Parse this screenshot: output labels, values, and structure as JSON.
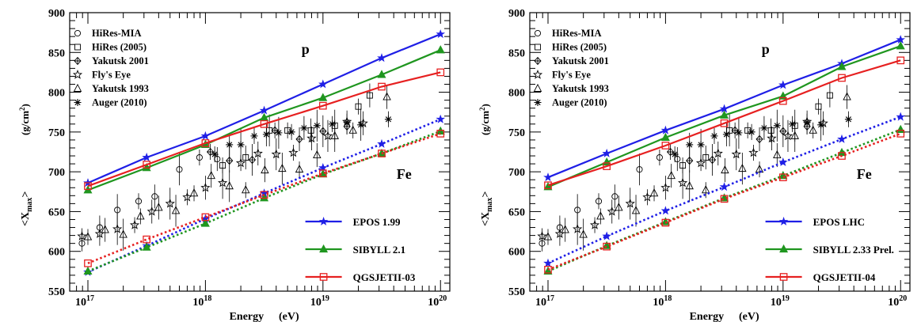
{
  "chart_data": [
    {
      "type": "line",
      "x_scale": "log",
      "xlim": [
        7e+16,
        1.2e+20
      ],
      "ylim": [
        550,
        900
      ],
      "x_tick_labels": [
        {
          "value": 1e+17,
          "base": "10",
          "exp": "17"
        },
        {
          "value": 1e+18,
          "base": "10",
          "exp": "18"
        },
        {
          "value": 1e+19,
          "base": "10",
          "exp": "19"
        },
        {
          "value": 1e+20,
          "base": "10",
          "exp": "20"
        }
      ],
      "y_ticks": [
        550,
        600,
        650,
        700,
        750,
        800,
        850,
        900
      ],
      "xlabel": "Energy",
      "xlabel_unit": "(eV)",
      "ylabel_main": "<X",
      "ylabel_sub": "max",
      "ylabel_close": ">",
      "ylabel_unit": "(g/cm",
      "ylabel_unit_sup": "2",
      "ylabel_unit_close": ")",
      "annotations": [
        {
          "text": "p",
          "x": 2.5e+19,
          "y": 855
        },
        {
          "text": "Fe",
          "x": 5e+19,
          "y": 690
        }
      ],
      "data_legend": [
        "HiRes-MIA",
        "HiRes (2005)",
        "Yakutsk 2001",
        "Fly's Eye",
        "Yakutsk 1993",
        "Auger (2010)"
      ],
      "data_legend_position": "top-left",
      "model_legend_position": "bottom-right",
      "series": [
        {
          "name": "EPOS 1.99",
          "component": "p",
          "style": "solid",
          "color": "#1f1fe6",
          "marker": "star",
          "x": [
            1e+17,
            3.16e+17,
            1e+18,
            3.16e+18,
            1e+19,
            3.16e+19,
            1e+20
          ],
          "y": [
            686,
            718,
            745,
            777,
            810,
            843,
            873
          ]
        },
        {
          "name": "SIBYLL 2.1",
          "component": "p",
          "style": "solid",
          "color": "#1f961f",
          "marker": "triangle",
          "x": [
            1e+17,
            3.16e+17,
            1e+18,
            3.16e+18,
            1e+19,
            3.16e+19,
            1e+20
          ],
          "y": [
            677,
            705,
            734,
            768,
            793,
            822,
            853
          ]
        },
        {
          "name": "QGSJETII-03",
          "component": "p",
          "style": "solid",
          "color": "#e62020",
          "marker": "open-square",
          "x": [
            1e+17,
            3.16e+17,
            1e+18,
            3.16e+18,
            1e+19,
            3.16e+19,
            1e+20
          ],
          "y": [
            682,
            709,
            736,
            760,
            783,
            807,
            825
          ]
        },
        {
          "name": "EPOS 1.99",
          "component": "Fe",
          "style": "dotted",
          "color": "#1f1fe6",
          "marker": "star",
          "x": [
            1e+17,
            3.16e+17,
            1e+18,
            3.16e+18,
            1e+19,
            3.16e+19,
            1e+20
          ],
          "y": [
            574,
            607,
            641,
            673,
            705,
            735,
            766
          ]
        },
        {
          "name": "SIBYLL 2.1",
          "component": "Fe",
          "style": "dotted",
          "color": "#1f961f",
          "marker": "triangle",
          "x": [
            1e+17,
            3.16e+17,
            1e+18,
            3.16e+18,
            1e+19,
            3.16e+19,
            1e+20
          ],
          "y": [
            575,
            605,
            635,
            667,
            697,
            723,
            751
          ]
        },
        {
          "name": "QGSJETII-03",
          "component": "Fe",
          "style": "dotted",
          "color": "#e62020",
          "marker": "open-square",
          "x": [
            1e+17,
            3.16e+17,
            1e+18,
            3.16e+18,
            1e+19,
            3.16e+19,
            1e+20
          ],
          "y": [
            585,
            615,
            643,
            671,
            698,
            723,
            748
          ]
        }
      ],
      "measurements": [
        {
          "name": "HiRes-MIA",
          "marker": "circle",
          "x": [
            8.9e+16,
            1.26e+17,
            1.78e+17,
            2.7e+17,
            3.7e+17,
            6e+17,
            8.9e+17,
            1.26e+18
          ],
          "y": [
            610,
            630,
            652,
            663,
            669,
            703,
            718,
            716
          ]
        },
        {
          "name": "HiRes (2005)",
          "marker": "square",
          "x": [
            1.4e+18,
            2.2e+18,
            3.5e+18,
            5e+18,
            7.9e+18,
            1.26e+19,
            2e+19,
            2.5e+19
          ],
          "y": [
            708,
            718,
            752,
            752,
            752,
            758,
            782,
            796
          ]
        },
        {
          "name": "Yakutsk 2001",
          "marker": "diamond-cross",
          "x": [
            1.1e+18,
            1.6e+18,
            2.5e+18,
            3.9e+18,
            6.3e+18,
            1e+19,
            1.6e+19
          ],
          "y": [
            725,
            714,
            715,
            752,
            741,
            751,
            757
          ]
        },
        {
          "name": "Fly's Eye",
          "marker": "open-star",
          "x": [
            8.9e+16,
            1.26e+17,
            1.78e+17,
            2.5e+17,
            3.5e+17,
            5e+17,
            7e+17,
            1e+18,
            1.4e+18,
            2e+18,
            2.8e+18,
            4e+18,
            5.6e+18,
            8e+18,
            1.1e+19,
            1.6e+19,
            2.2e+19
          ],
          "y": [
            619,
            622,
            628,
            633,
            650,
            660,
            668,
            680,
            686,
            711,
            723,
            722,
            724,
            742,
            745,
            763,
            761
          ]
        },
        {
          "name": "Yakutsk 1993",
          "marker": "open-triangle",
          "x": [
            1e+17,
            1.4e+17,
            2e+17,
            2.8e+17,
            4e+17,
            5.6e+17,
            8e+17,
            1.12e+18,
            1.6e+18,
            2.2e+18,
            3.2e+18,
            4.5e+18,
            6.3e+18,
            8.9e+18,
            1.26e+19,
            1.8e+19,
            3.5e+19
          ],
          "y": [
            618,
            627,
            621,
            644,
            655,
            651,
            673,
            695,
            682,
            677,
            702,
            704,
            703,
            721,
            745,
            752,
            794
          ]
        },
        {
          "name": "Auger (2010)",
          "marker": "asterisk",
          "x": [
            1.2e+18,
            1.6e+18,
            2e+18,
            2.6e+18,
            3.3e+18,
            4.2e+18,
            5.4e+18,
            6.9e+18,
            8.9e+18,
            1.2e+19,
            1.6e+19,
            2.1e+19,
            3.6e+19
          ],
          "y": [
            722,
            734,
            734,
            745,
            747,
            749,
            750,
            755,
            758,
            760,
            762,
            759,
            766
          ]
        }
      ]
    },
    {
      "type": "line",
      "x_scale": "log",
      "xlim": [
        7e+16,
        1.2e+20
      ],
      "ylim": [
        550,
        900
      ],
      "x_tick_labels": [
        {
          "value": 1e+17,
          "base": "10",
          "exp": "17"
        },
        {
          "value": 1e+18,
          "base": "10",
          "exp": "18"
        },
        {
          "value": 1e+19,
          "base": "10",
          "exp": "19"
        },
        {
          "value": 1e+20,
          "base": "10",
          "exp": "20"
        }
      ],
      "y_ticks": [
        550,
        600,
        650,
        700,
        750,
        800,
        850,
        900
      ],
      "xlabel": "Energy",
      "xlabel_unit": "(eV)",
      "ylabel_main": "<X",
      "ylabel_sub": "max",
      "ylabel_close": ">",
      "ylabel_unit": "(g/cm",
      "ylabel_unit_sup": "2",
      "ylabel_unit_close": ")",
      "annotations": [
        {
          "text": "p",
          "x": 2.5e+19,
          "y": 855
        },
        {
          "text": "Fe",
          "x": 5e+19,
          "y": 690
        }
      ],
      "data_legend": [
        "HiRes-MIA",
        "HiRes (2005)",
        "Yakutsk 2001",
        "Fly's Eye",
        "Yakutsk 1993",
        "Auger (2010)"
      ],
      "data_legend_position": "top-left",
      "model_legend_position": "bottom-right",
      "series": [
        {
          "name": "EPOS LHC",
          "component": "p",
          "style": "solid",
          "color": "#1f1fe6",
          "marker": "star",
          "x": [
            1e+17,
            3.16e+17,
            1e+18,
            3.16e+18,
            1e+19,
            3.16e+19,
            1e+20
          ],
          "y": [
            693,
            723,
            752,
            779,
            809,
            836,
            866
          ]
        },
        {
          "name": "SIBYLL 2.33 Prel.",
          "component": "p",
          "style": "solid",
          "color": "#1f961f",
          "marker": "triangle",
          "x": [
            1e+17,
            3.16e+17,
            1e+18,
            3.16e+18,
            1e+19,
            3.16e+19,
            1e+20
          ],
          "y": [
            681,
            712,
            743,
            771,
            795,
            832,
            858
          ]
        },
        {
          "name": "QGSJETII-04",
          "component": "p",
          "style": "solid",
          "color": "#e62020",
          "marker": "open-square",
          "x": [
            1e+17,
            3.16e+17,
            1e+18,
            3.16e+18,
            1e+19,
            3.16e+19,
            1e+20
          ],
          "y": [
            683,
            707,
            733,
            761,
            789,
            818,
            840
          ]
        },
        {
          "name": "EPOS LHC",
          "component": "Fe",
          "style": "dotted",
          "color": "#1f1fe6",
          "marker": "star",
          "x": [
            1e+17,
            3.16e+17,
            1e+18,
            3.16e+18,
            1e+19,
            3.16e+19,
            1e+20
          ],
          "y": [
            585,
            619,
            651,
            681,
            712,
            741,
            769
          ]
        },
        {
          "name": "SIBYLL 2.33 Prel.",
          "component": "Fe",
          "style": "dotted",
          "color": "#1f961f",
          "marker": "triangle",
          "x": [
            1e+17,
            3.16e+17,
            1e+18,
            3.16e+18,
            1e+19,
            3.16e+19,
            1e+20
          ],
          "y": [
            575,
            607,
            637,
            667,
            695,
            724,
            753
          ]
        },
        {
          "name": "QGSJETII-04",
          "component": "Fe",
          "style": "dotted",
          "color": "#e62020",
          "marker": "open-square",
          "x": [
            1e+17,
            3.16e+17,
            1e+18,
            3.16e+18,
            1e+19,
            3.16e+19,
            1e+20
          ],
          "y": [
            577,
            606,
            636,
            666,
            693,
            720,
            748
          ]
        }
      ],
      "measurements": [
        {
          "name": "HiRes-MIA",
          "marker": "circle",
          "x": [
            8.9e+16,
            1.26e+17,
            1.78e+17,
            2.7e+17,
            3.7e+17,
            6e+17,
            8.9e+17,
            1.26e+18
          ],
          "y": [
            610,
            630,
            652,
            663,
            669,
            703,
            718,
            716
          ]
        },
        {
          "name": "HiRes (2005)",
          "marker": "square",
          "x": [
            1.4e+18,
            2.2e+18,
            3.5e+18,
            5e+18,
            7.9e+18,
            1.26e+19,
            2e+19,
            2.5e+19
          ],
          "y": [
            708,
            718,
            752,
            752,
            752,
            758,
            782,
            796
          ]
        },
        {
          "name": "Yakutsk 2001",
          "marker": "diamond-cross",
          "x": [
            1.1e+18,
            1.6e+18,
            2.5e+18,
            3.9e+18,
            6.3e+18,
            1e+19,
            1.6e+19
          ],
          "y": [
            725,
            714,
            715,
            752,
            741,
            751,
            757
          ]
        },
        {
          "name": "Fly's Eye",
          "marker": "open-star",
          "x": [
            8.9e+16,
            1.26e+17,
            1.78e+17,
            2.5e+17,
            3.5e+17,
            5e+17,
            7e+17,
            1e+18,
            1.4e+18,
            2e+18,
            2.8e+18,
            4e+18,
            5.6e+18,
            8e+18,
            1.1e+19,
            1.6e+19,
            2.2e+19
          ],
          "y": [
            619,
            622,
            628,
            633,
            650,
            660,
            668,
            680,
            686,
            711,
            723,
            722,
            724,
            742,
            745,
            763,
            761
          ]
        },
        {
          "name": "Yakutsk 1993",
          "marker": "open-triangle",
          "x": [
            1e+17,
            1.4e+17,
            2e+17,
            2.8e+17,
            4e+17,
            5.6e+17,
            8e+17,
            1.12e+18,
            1.6e+18,
            2.2e+18,
            3.2e+18,
            4.5e+18,
            6.3e+18,
            8.9e+18,
            1.26e+19,
            1.8e+19,
            3.5e+19
          ],
          "y": [
            618,
            627,
            621,
            644,
            655,
            651,
            673,
            695,
            682,
            677,
            702,
            704,
            703,
            721,
            745,
            752,
            794
          ]
        },
        {
          "name": "Auger (2010)",
          "marker": "asterisk",
          "x": [
            1.2e+18,
            1.6e+18,
            2e+18,
            2.6e+18,
            3.3e+18,
            4.2e+18,
            5.4e+18,
            6.9e+18,
            8.9e+18,
            1.2e+19,
            1.6e+19,
            2.1e+19,
            3.6e+19
          ],
          "y": [
            722,
            734,
            734,
            745,
            747,
            749,
            750,
            755,
            758,
            760,
            762,
            759,
            766
          ]
        }
      ]
    }
  ]
}
